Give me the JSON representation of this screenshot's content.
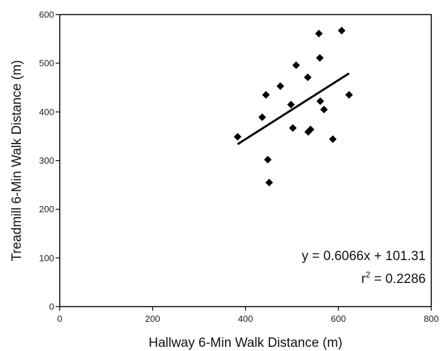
{
  "chart_data": {
    "type": "scatter",
    "title": "",
    "xlabel": "Hallway 6-Min Walk Distance (m)",
    "ylabel": "Treadmill 6-Min Walk Distance (m)",
    "xlim": [
      0,
      800
    ],
    "ylim": [
      0,
      600
    ],
    "x_ticks": [
      "0",
      "200",
      "400",
      "600",
      "800"
    ],
    "y_ticks": [
      "0",
      "100",
      "200",
      "300",
      "400",
      "500",
      "600"
    ],
    "grid": false,
    "marker": "diamond",
    "marker_color": "#000000",
    "series": [
      {
        "points": [
          {
            "x": 383,
            "y": 349
          },
          {
            "x": 436,
            "y": 389
          },
          {
            "x": 444,
            "y": 435
          },
          {
            "x": 448,
            "y": 302
          },
          {
            "x": 451,
            "y": 255
          },
          {
            "x": 475,
            "y": 453
          },
          {
            "x": 498,
            "y": 415
          },
          {
            "x": 502,
            "y": 367
          },
          {
            "x": 509,
            "y": 496
          },
          {
            "x": 534,
            "y": 471
          },
          {
            "x": 535,
            "y": 359
          },
          {
            "x": 540,
            "y": 364
          },
          {
            "x": 558,
            "y": 561
          },
          {
            "x": 560,
            "y": 511
          },
          {
            "x": 561,
            "y": 422
          },
          {
            "x": 569,
            "y": 405
          },
          {
            "x": 588,
            "y": 344
          },
          {
            "x": 607,
            "y": 567
          },
          {
            "x": 623,
            "y": 435
          }
        ]
      }
    ],
    "trendline": {
      "slope": 0.6066,
      "intercept": 101.31,
      "x_range": [
        383,
        623
      ]
    },
    "annotations": [
      "y = 0.6066x + 101.31",
      "r2_label"
    ],
    "equation_text": "y = 0.6066x + 101.31",
    "r2_prefix": "r",
    "r2_sup": "2",
    "r2_value": " = 0.2286"
  }
}
